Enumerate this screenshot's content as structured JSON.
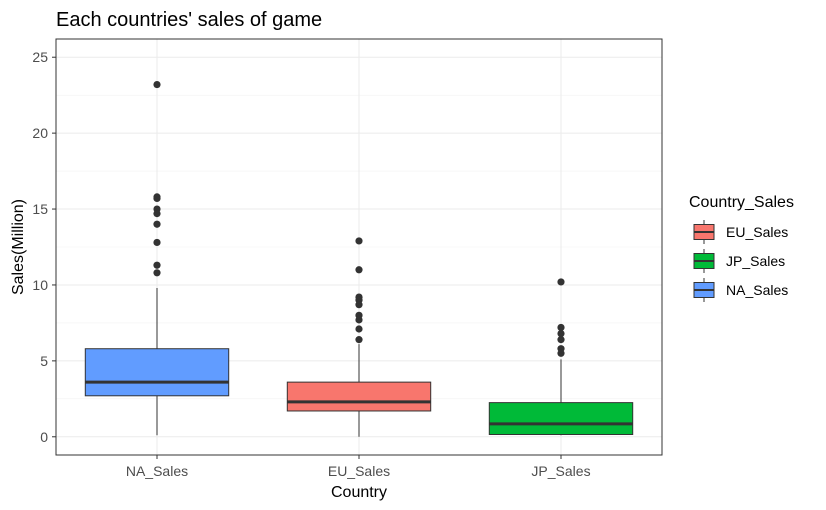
{
  "chart_data": {
    "type": "boxplot",
    "title": "Each countries' sales of game",
    "xlabel": "Country",
    "ylabel": "Sales(Million)",
    "ylim": [
      -1.2,
      26.2
    ],
    "yticks": [
      0,
      5,
      10,
      15,
      20,
      25
    ],
    "categories": [
      "NA_Sales",
      "EU_Sales",
      "JP_Sales"
    ],
    "grid": true,
    "legend": {
      "title": "Country_Sales",
      "position": "right",
      "entries": [
        "EU_Sales",
        "JP_Sales",
        "NA_Sales"
      ]
    },
    "series": [
      {
        "name": "NA_Sales",
        "color": "#619CFF",
        "whisker_low": 0.1,
        "q1": 2.7,
        "median": 3.6,
        "q3": 5.8,
        "whisker_high": 9.8,
        "outliers": [
          23.2,
          15.8,
          15.7,
          15.0,
          14.7,
          14.0,
          12.8,
          11.3,
          10.8
        ]
      },
      {
        "name": "EU_Sales",
        "color": "#F8766D",
        "whisker_low": 0.0,
        "q1": 1.7,
        "median": 2.3,
        "q3": 3.6,
        "whisker_high": 6.1,
        "outliers": [
          12.9,
          11.0,
          9.2,
          9.0,
          8.7,
          8.0,
          7.7,
          7.1,
          6.4
        ]
      },
      {
        "name": "JP_Sales",
        "color": "#00BA38",
        "whisker_low": 0.1,
        "q1": 0.15,
        "median": 0.85,
        "q3": 2.25,
        "whisker_high": 5.1,
        "outliers": [
          10.2,
          7.2,
          6.8,
          6.4,
          5.8,
          5.5
        ]
      }
    ]
  }
}
